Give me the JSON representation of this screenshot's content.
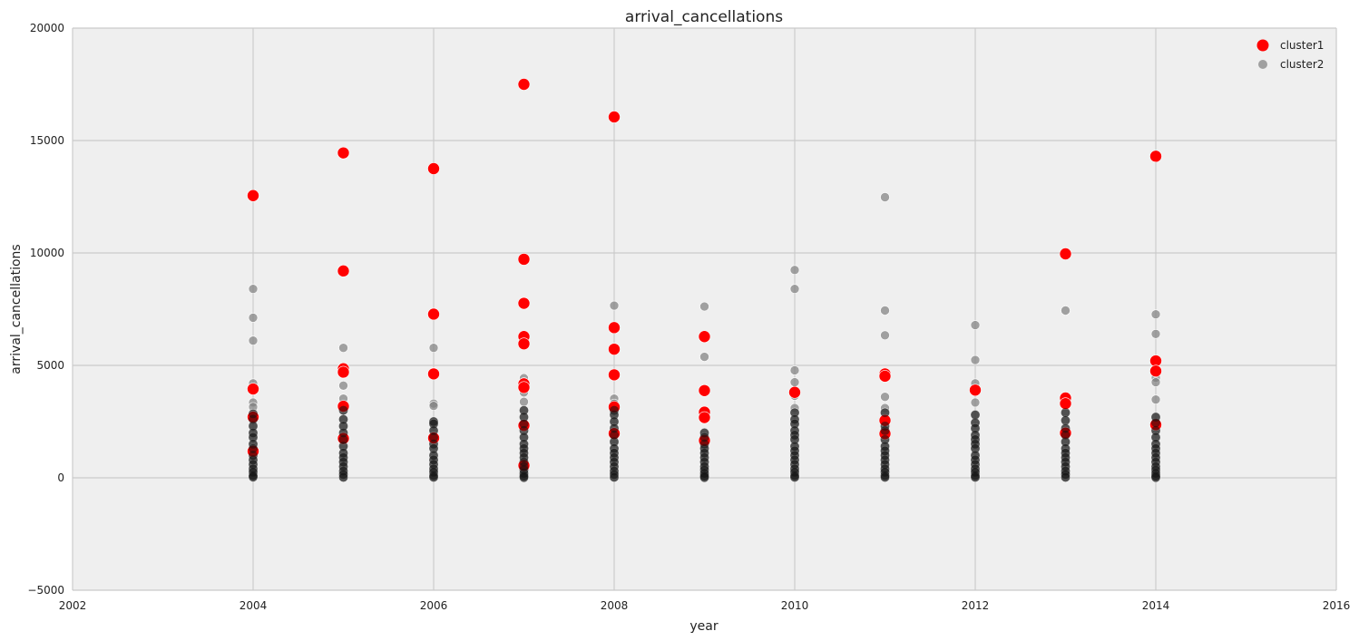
{
  "chart_data": {
    "type": "scatter",
    "title": "arrival_cancellations",
    "xlabel": "year",
    "ylabel": "arrival_cancellations",
    "xlim": [
      2002,
      2016
    ],
    "ylim": [
      -5000,
      20000
    ],
    "xticks": [
      "2002",
      "2004",
      "2006",
      "2008",
      "2010",
      "2012",
      "2014",
      "2016"
    ],
    "yticks": [
      "−5000",
      "0",
      "5000",
      "10000",
      "15000",
      "20000"
    ],
    "grid": true,
    "legend_position": "top-right",
    "series": [
      {
        "name": "cluster1",
        "color": "#ff0000",
        "points": [
          [
            2004,
            12550
          ],
          [
            2004,
            3950
          ],
          [
            2004,
            2700
          ],
          [
            2004,
            1180
          ],
          [
            2005,
            14450
          ],
          [
            2005,
            9200
          ],
          [
            2005,
            4850
          ],
          [
            2005,
            4700
          ],
          [
            2005,
            3180
          ],
          [
            2005,
            1750
          ],
          [
            2006,
            13750
          ],
          [
            2006,
            7280
          ],
          [
            2006,
            4620
          ],
          [
            2006,
            1770
          ],
          [
            2007,
            17500
          ],
          [
            2007,
            9720
          ],
          [
            2007,
            7760
          ],
          [
            2007,
            6280
          ],
          [
            2007,
            5960
          ],
          [
            2007,
            4180
          ],
          [
            2007,
            4020
          ],
          [
            2007,
            2330
          ],
          [
            2007,
            550
          ],
          [
            2008,
            16050
          ],
          [
            2008,
            6680
          ],
          [
            2008,
            5720
          ],
          [
            2008,
            4580
          ],
          [
            2008,
            3150
          ],
          [
            2008,
            1970
          ],
          [
            2009,
            6280
          ],
          [
            2009,
            3880
          ],
          [
            2009,
            2920
          ],
          [
            2009,
            2680
          ],
          [
            2009,
            1660
          ],
          [
            2010,
            3800
          ],
          [
            2011,
            4620
          ],
          [
            2011,
            4520
          ],
          [
            2011,
            2550
          ],
          [
            2011,
            1960
          ],
          [
            2012,
            3900
          ],
          [
            2013,
            9960
          ],
          [
            2013,
            3550
          ],
          [
            2013,
            3300
          ],
          [
            2013,
            1990
          ],
          [
            2014,
            14300
          ],
          [
            2014,
            5200
          ],
          [
            2014,
            4750
          ],
          [
            2014,
            2360
          ]
        ]
      },
      {
        "name": "cluster2",
        "color": "#7f7f7f",
        "points": [
          [
            2004,
            8400
          ],
          [
            2004,
            7120
          ],
          [
            2004,
            6100
          ],
          [
            2004,
            4200
          ],
          [
            2004,
            3350
          ],
          [
            2004,
            3150
          ],
          [
            2004,
            2850
          ],
          [
            2004,
            2600
          ],
          [
            2004,
            2300
          ],
          [
            2004,
            2000
          ],
          [
            2004,
            1800
          ],
          [
            2004,
            1500
          ],
          [
            2004,
            1300
          ],
          [
            2004,
            1000
          ],
          [
            2004,
            800
          ],
          [
            2004,
            600
          ],
          [
            2004,
            400
          ],
          [
            2004,
            250
          ],
          [
            2004,
            100
          ],
          [
            2004,
            30
          ],
          [
            2005,
            5780
          ],
          [
            2005,
            4620
          ],
          [
            2005,
            4100
          ],
          [
            2005,
            3520
          ],
          [
            2005,
            3000
          ],
          [
            2005,
            2600
          ],
          [
            2005,
            2300
          ],
          [
            2005,
            2000
          ],
          [
            2005,
            1700
          ],
          [
            2005,
            1400
          ],
          [
            2005,
            1100
          ],
          [
            2005,
            900
          ],
          [
            2005,
            700
          ],
          [
            2005,
            500
          ],
          [
            2005,
            300
          ],
          [
            2005,
            150
          ],
          [
            2005,
            20
          ],
          [
            2006,
            5780
          ],
          [
            2006,
            4700
          ],
          [
            2006,
            3300
          ],
          [
            2006,
            3200
          ],
          [
            2006,
            2500
          ],
          [
            2006,
            2400
          ],
          [
            2006,
            2100
          ],
          [
            2006,
            1800
          ],
          [
            2006,
            1500
          ],
          [
            2006,
            1300
          ],
          [
            2006,
            1000
          ],
          [
            2006,
            800
          ],
          [
            2006,
            600
          ],
          [
            2006,
            400
          ],
          [
            2006,
            250
          ],
          [
            2006,
            100
          ],
          [
            2006,
            20
          ],
          [
            2007,
            4430
          ],
          [
            2007,
            4250
          ],
          [
            2007,
            3800
          ],
          [
            2007,
            3380
          ],
          [
            2007,
            3000
          ],
          [
            2007,
            2700
          ],
          [
            2007,
            2400
          ],
          [
            2007,
            2100
          ],
          [
            2007,
            1800
          ],
          [
            2007,
            1500
          ],
          [
            2007,
            1300
          ],
          [
            2007,
            1100
          ],
          [
            2007,
            900
          ],
          [
            2007,
            700
          ],
          [
            2007,
            500
          ],
          [
            2007,
            350
          ],
          [
            2007,
            200
          ],
          [
            2007,
            80
          ],
          [
            2007,
            10
          ],
          [
            2008,
            7660
          ],
          [
            2008,
            3520
          ],
          [
            2008,
            3300
          ],
          [
            2008,
            3000
          ],
          [
            2008,
            2800
          ],
          [
            2008,
            2500
          ],
          [
            2008,
            2200
          ],
          [
            2008,
            1900
          ],
          [
            2008,
            1600
          ],
          [
            2008,
            1300
          ],
          [
            2008,
            1100
          ],
          [
            2008,
            900
          ],
          [
            2008,
            700
          ],
          [
            2008,
            500
          ],
          [
            2008,
            300
          ],
          [
            2008,
            150
          ],
          [
            2008,
            20
          ],
          [
            2009,
            7620
          ],
          [
            2009,
            5380
          ],
          [
            2009,
            2000
          ],
          [
            2009,
            1800
          ],
          [
            2009,
            1500
          ],
          [
            2009,
            1300
          ],
          [
            2009,
            1100
          ],
          [
            2009,
            900
          ],
          [
            2009,
            700
          ],
          [
            2009,
            500
          ],
          [
            2009,
            350
          ],
          [
            2009,
            200
          ],
          [
            2009,
            80
          ],
          [
            2009,
            10
          ],
          [
            2010,
            9240
          ],
          [
            2010,
            8400
          ],
          [
            2010,
            4780
          ],
          [
            2010,
            4250
          ],
          [
            2010,
            3650
          ],
          [
            2010,
            3100
          ],
          [
            2010,
            2900
          ],
          [
            2010,
            2600
          ],
          [
            2010,
            2400
          ],
          [
            2010,
            2100
          ],
          [
            2010,
            1900
          ],
          [
            2010,
            1700
          ],
          [
            2010,
            1400
          ],
          [
            2010,
            1200
          ],
          [
            2010,
            1000
          ],
          [
            2010,
            800
          ],
          [
            2010,
            600
          ],
          [
            2010,
            400
          ],
          [
            2010,
            250
          ],
          [
            2010,
            100
          ],
          [
            2010,
            20
          ],
          [
            2011,
            12480
          ],
          [
            2011,
            7440
          ],
          [
            2011,
            6340
          ],
          [
            2011,
            3600
          ],
          [
            2011,
            3100
          ],
          [
            2011,
            2900
          ],
          [
            2011,
            2300
          ],
          [
            2011,
            2100
          ],
          [
            2011,
            1700
          ],
          [
            2011,
            1400
          ],
          [
            2011,
            1200
          ],
          [
            2011,
            1000
          ],
          [
            2011,
            800
          ],
          [
            2011,
            600
          ],
          [
            2011,
            400
          ],
          [
            2011,
            250
          ],
          [
            2011,
            100
          ],
          [
            2011,
            20
          ],
          [
            2012,
            6790
          ],
          [
            2012,
            5240
          ],
          [
            2012,
            4200
          ],
          [
            2012,
            3900
          ],
          [
            2012,
            3350
          ],
          [
            2012,
            2800
          ],
          [
            2012,
            2450
          ],
          [
            2012,
            2200
          ],
          [
            2012,
            1900
          ],
          [
            2012,
            1700
          ],
          [
            2012,
            1500
          ],
          [
            2012,
            1300
          ],
          [
            2012,
            1000
          ],
          [
            2012,
            800
          ],
          [
            2012,
            600
          ],
          [
            2012,
            400
          ],
          [
            2012,
            250
          ],
          [
            2012,
            100
          ],
          [
            2012,
            20
          ],
          [
            2013,
            7440
          ],
          [
            2013,
            3400
          ],
          [
            2013,
            2900
          ],
          [
            2013,
            2550
          ],
          [
            2013,
            2200
          ],
          [
            2013,
            1900
          ],
          [
            2013,
            1600
          ],
          [
            2013,
            1300
          ],
          [
            2013,
            1100
          ],
          [
            2013,
            900
          ],
          [
            2013,
            700
          ],
          [
            2013,
            500
          ],
          [
            2013,
            300
          ],
          [
            2013,
            150
          ],
          [
            2013,
            20
          ],
          [
            2014,
            7270
          ],
          [
            2014,
            6400
          ],
          [
            2014,
            4450
          ],
          [
            2014,
            4250
          ],
          [
            2014,
            3480
          ],
          [
            2014,
            2700
          ],
          [
            2014,
            2450
          ],
          [
            2014,
            2100
          ],
          [
            2014,
            1800
          ],
          [
            2014,
            1500
          ],
          [
            2014,
            1300
          ],
          [
            2014,
            1100
          ],
          [
            2014,
            900
          ],
          [
            2014,
            700
          ],
          [
            2014,
            500
          ],
          [
            2014,
            350
          ],
          [
            2014,
            200
          ],
          [
            2014,
            80
          ],
          [
            2014,
            10
          ]
        ]
      }
    ]
  }
}
